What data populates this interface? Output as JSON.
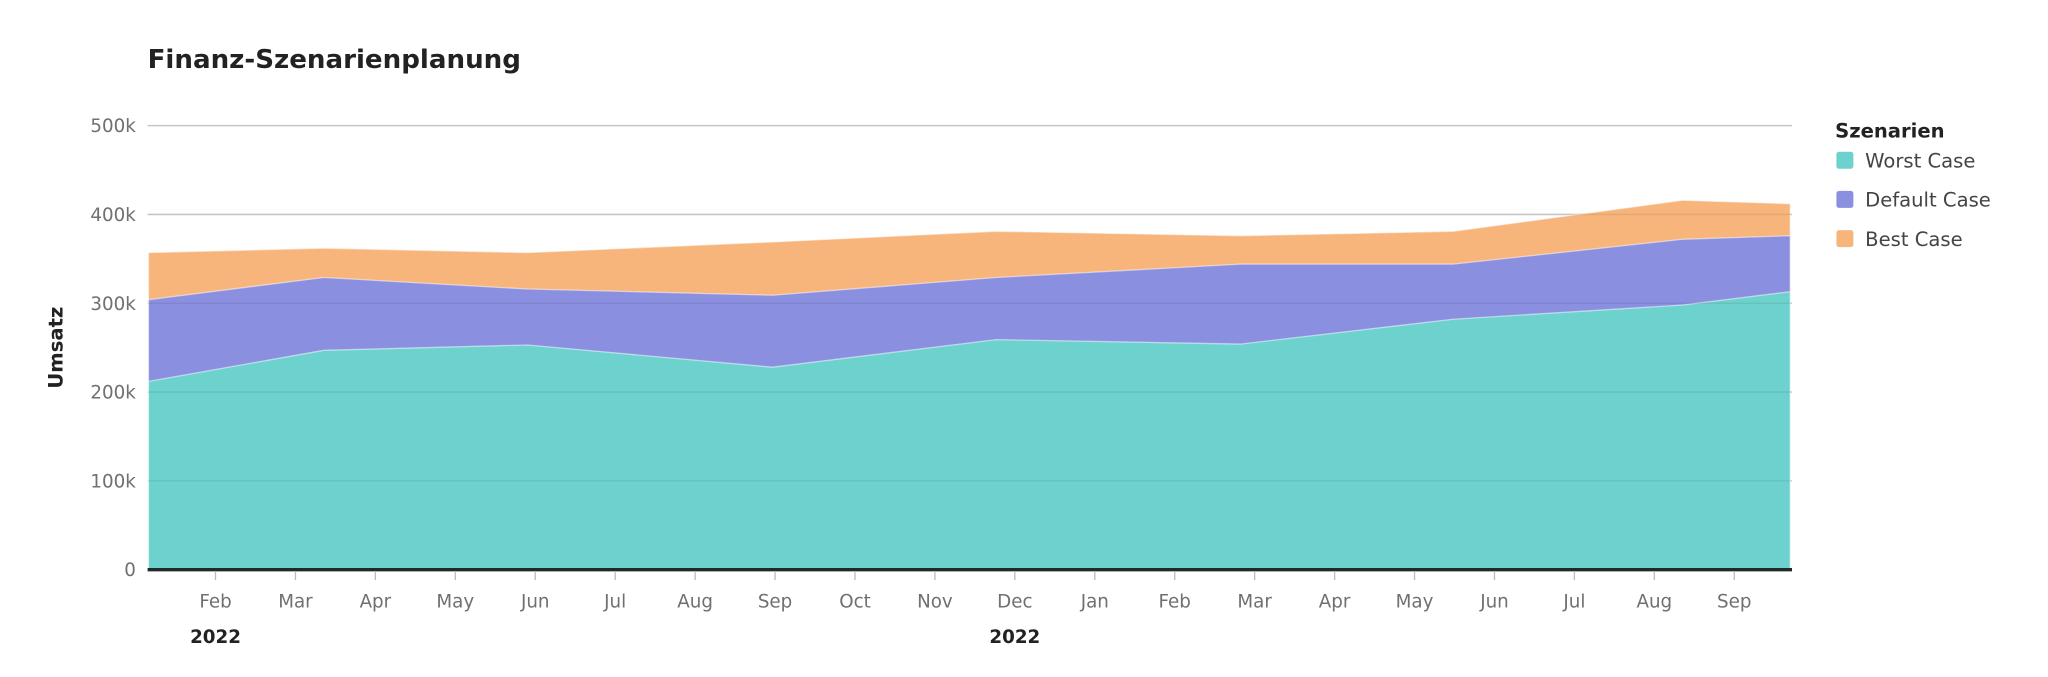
{
  "chart_data": {
    "type": "area",
    "title": "Finanz-Szenarienplanung",
    "ylabel": "Umsatz",
    "xlabel": "",
    "ylim": [
      0,
      500000
    ],
    "y_ticks": [
      {
        "value": 0,
        "label": "0"
      },
      {
        "value": 100000,
        "label": "100k"
      },
      {
        "value": 200000,
        "label": "200k"
      },
      {
        "value": 300000,
        "label": "300k"
      },
      {
        "value": 400000,
        "label": "400k"
      },
      {
        "value": 500000,
        "label": "500k"
      }
    ],
    "x_ticks": [
      "Feb",
      "Mar",
      "Apr",
      "May",
      "Jun",
      "Jul",
      "Aug",
      "Sep",
      "Oct",
      "Nov",
      "Dec",
      "Jan",
      "Feb",
      "Mar",
      "Apr",
      "May",
      "Jun",
      "Jul",
      "Aug",
      "Sep"
    ],
    "x_tick_start": "2022-02",
    "year_labels": [
      {
        "label": "2022",
        "tick_index": 0
      },
      {
        "label": "2022",
        "tick_index": 10
      }
    ],
    "grid": true,
    "legend": {
      "title": "Szenarien",
      "placement": "right"
    },
    "x": [
      "2022-01-06",
      "2022-03-12",
      "2022-05-29",
      "2022-08-31",
      "2022-11-24",
      "2023-02-24",
      "2023-05-16",
      "2023-08-12",
      "2023-09-22"
    ],
    "series": [
      {
        "name": "Best Case",
        "color": "#f7b57c",
        "values": [
          357000,
          362000,
          357000,
          369000,
          381000,
          376000,
          381000,
          416000,
          412000
        ]
      },
      {
        "name": "Default Case",
        "color": "#8b8fe0",
        "values": [
          304000,
          329000,
          316000,
          309000,
          329000,
          344000,
          344000,
          372000,
          376000
        ]
      },
      {
        "name": "Worst Case",
        "color": "#6dd2cd",
        "values": [
          212000,
          247000,
          253000,
          228000,
          259000,
          254000,
          282000,
          298000,
          313000
        ]
      }
    ],
    "legend_order": [
      "Worst Case",
      "Default Case",
      "Best Case"
    ]
  }
}
